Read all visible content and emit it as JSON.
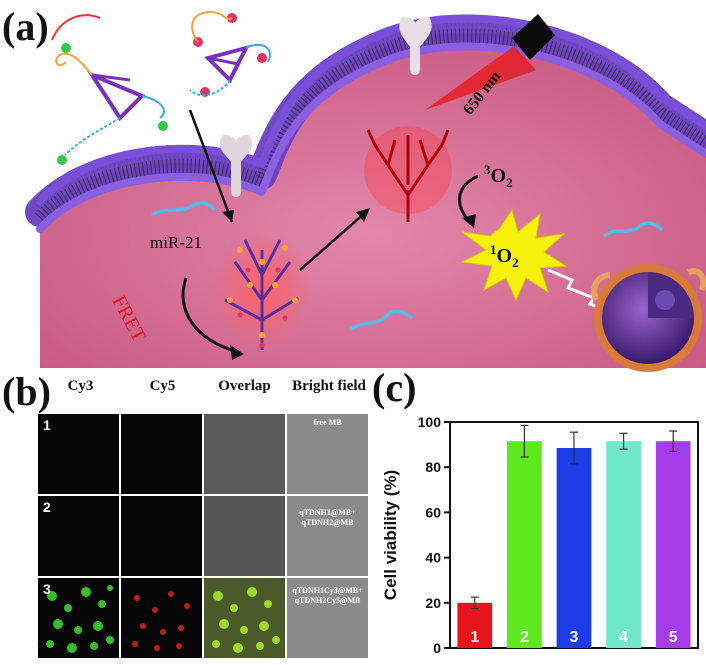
{
  "panel_a": {
    "label": "(a)",
    "mirna_label": "miR-21",
    "fret_label": "FRET",
    "laser_label": "650 nm",
    "triplet_oxygen": "3O2",
    "singlet_oxygen": "1O2",
    "colors": {
      "membrane_head": "#6a3fc2",
      "cytoplasm": "#d86f96",
      "laser": "#e0121a",
      "burst": "#f6f10a"
    }
  },
  "panel_b": {
    "label": "(b)",
    "columns": [
      "Cy3",
      "Cy5",
      "Overlap",
      "Bright field"
    ],
    "rows": [
      {
        "number": "1",
        "bright_field_lines": [
          "free MB"
        ]
      },
      {
        "number": "2",
        "bright_field_lines": [
          "qTDNH1@MB+",
          "qTDNH2@MB"
        ]
      },
      {
        "number": "3",
        "bright_field_lines": [
          "qTDNH1Cy3@MB+",
          "qTDNH2Cy5@MB"
        ]
      }
    ]
  },
  "panel_c": {
    "label": "(c)"
  },
  "chart_data": {
    "type": "bar",
    "categories": [
      "1",
      "2",
      "3",
      "4",
      "5"
    ],
    "values": [
      20,
      91.5,
      88.5,
      91.5,
      91.5
    ],
    "errors": [
      2.5,
      7,
      7,
      3.5,
      4.5
    ],
    "colors": [
      "#e8141c",
      "#5ee81e",
      "#1c3ce8",
      "#6ee8c8",
      "#a63ce8"
    ],
    "ylabel": "Cell viability (%)",
    "ylim": [
      0,
      100
    ],
    "yticks": [
      0,
      20,
      40,
      60,
      80,
      100
    ]
  }
}
